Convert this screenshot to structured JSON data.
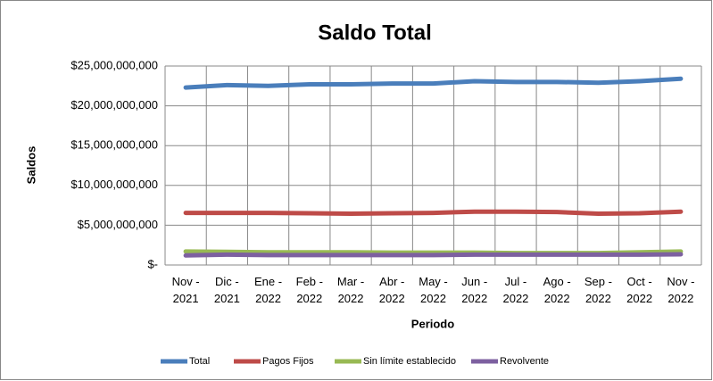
{
  "chart_data": {
    "type": "line",
    "title": "Saldo Total",
    "x_label": "Periodo",
    "y_label": "Saldos",
    "categories": [
      "Nov - 2021",
      "Dic - 2021",
      "Ene - 2022",
      "Feb - 2022",
      "Mar - 2022",
      "Abr - 2022",
      "May - 2022",
      "Jun - 2022",
      "Jul - 2022",
      "Ago - 2022",
      "Sep - 2022",
      "Oct - 2022",
      "Nov - 2022"
    ],
    "series": [
      {
        "name": "Total",
        "color": "#4a7ebb",
        "values": [
          22300000000,
          22600000000,
          22500000000,
          22700000000,
          22700000000,
          22800000000,
          22800000000,
          23100000000,
          23000000000,
          23000000000,
          22900000000,
          23100000000,
          23400000000
        ]
      },
      {
        "name": "Pagos Fijos",
        "color": "#be4b48",
        "values": [
          6550000000,
          6550000000,
          6550000000,
          6500000000,
          6450000000,
          6500000000,
          6550000000,
          6700000000,
          6700000000,
          6650000000,
          6450000000,
          6500000000,
          6700000000
        ]
      },
      {
        "name": "Sin límite establecido",
        "color": "#98b954",
        "values": [
          1700000000,
          1650000000,
          1600000000,
          1600000000,
          1600000000,
          1550000000,
          1550000000,
          1550000000,
          1500000000,
          1500000000,
          1500000000,
          1600000000,
          1700000000
        ]
      },
      {
        "name": "Revolvente",
        "color": "#7d60a0",
        "values": [
          1200000000,
          1300000000,
          1250000000,
          1250000000,
          1250000000,
          1250000000,
          1250000000,
          1300000000,
          1300000000,
          1300000000,
          1300000000,
          1300000000,
          1350000000
        ]
      }
    ],
    "ylim": [
      0,
      25000000000
    ],
    "yticks": [
      {
        "value": 0,
        "label": "$-"
      },
      {
        "value": 5000000000,
        "label": "$5,000,000,000"
      },
      {
        "value": 10000000000,
        "label": "$10,000,000,000"
      },
      {
        "value": 15000000000,
        "label": "$15,000,000,000"
      },
      {
        "value": 20000000000,
        "label": "$20,000,000,000"
      },
      {
        "value": 25000000000,
        "label": "$25,000,000,000"
      }
    ],
    "grid": true,
    "legend": "bottom"
  }
}
